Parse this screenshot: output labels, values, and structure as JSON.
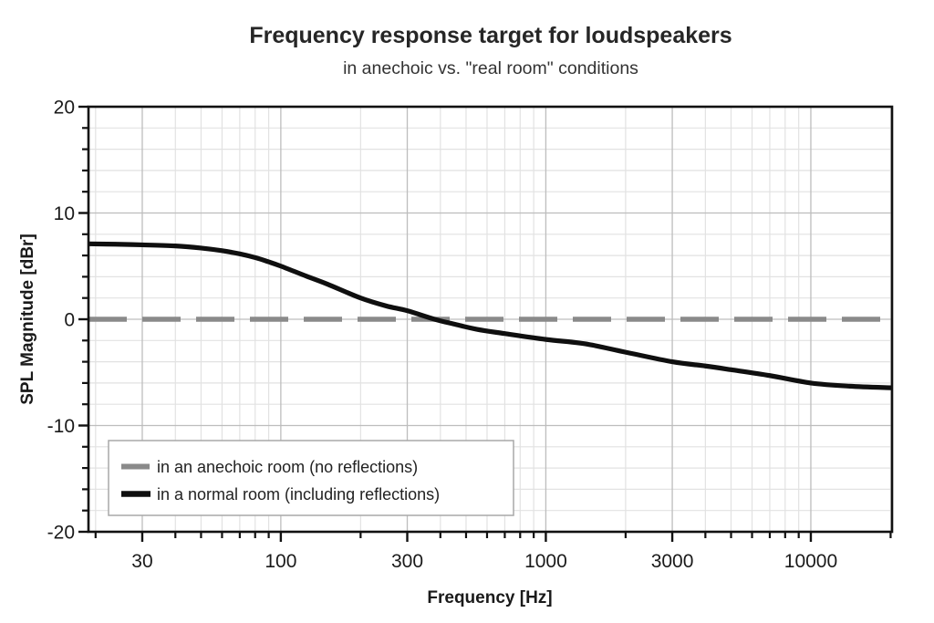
{
  "chart_data": {
    "type": "line",
    "title": "Frequency response target for loudspeakers",
    "subtitle": "in anechoic vs. \"real room\" conditions",
    "grid": true,
    "legend_position": "lower left",
    "x_axis": {
      "label": "Frequency [Hz]",
      "scale": "log",
      "range": [
        18.8,
        20250
      ],
      "major_ticks": [
        30,
        100,
        300,
        1000,
        3000,
        10000
      ],
      "major_tick_labels": [
        "30",
        "100",
        "300",
        "1000",
        "3000",
        "10000"
      ],
      "minor_ticks": [
        20,
        40,
        50,
        60,
        70,
        80,
        90,
        200,
        400,
        500,
        600,
        700,
        800,
        900,
        2000,
        4000,
        5000,
        6000,
        7000,
        8000,
        9000,
        20000
      ]
    },
    "y_axis": {
      "label": "SPL Magnitude [dBr]",
      "scale": "linear",
      "range": [
        -20,
        20
      ],
      "major_ticks": [
        -20,
        -10,
        0,
        10,
        20
      ],
      "major_tick_labels": [
        "-20",
        "-10",
        "0",
        "10",
        "20"
      ],
      "minor_ticks": [
        -18,
        -16,
        -14,
        -12,
        -8,
        -6,
        -4,
        -2,
        2,
        4,
        6,
        8,
        12,
        14,
        16,
        18
      ]
    },
    "series": [
      {
        "name": "anechoic",
        "label": "in an anechoic room (no reflections)",
        "color": "#8a8a8a",
        "width": 5.5,
        "dash": [
          42,
          17
        ],
        "points": [
          [
            18.8,
            0
          ],
          [
            20250,
            0
          ]
        ]
      },
      {
        "name": "normal-room",
        "label": "in a normal room (including reflections)",
        "color": "#0f0f0f",
        "width": 5.2,
        "dash": null,
        "points": [
          [
            18.8,
            7.1
          ],
          [
            25,
            7.05
          ],
          [
            30,
            7.0
          ],
          [
            40,
            6.9
          ],
          [
            50,
            6.7
          ],
          [
            60,
            6.45
          ],
          [
            70,
            6.15
          ],
          [
            80,
            5.8
          ],
          [
            90,
            5.4
          ],
          [
            100,
            5.0
          ],
          [
            125,
            4.05
          ],
          [
            150,
            3.3
          ],
          [
            200,
            2.0
          ],
          [
            250,
            1.25
          ],
          [
            300,
            0.8
          ],
          [
            380,
            0.0
          ],
          [
            450,
            -0.45
          ],
          [
            550,
            -0.95
          ],
          [
            700,
            -1.35
          ],
          [
            1000,
            -1.9
          ],
          [
            1400,
            -2.3
          ],
          [
            2000,
            -3.1
          ],
          [
            3000,
            -4.0
          ],
          [
            4000,
            -4.4
          ],
          [
            5000,
            -4.75
          ],
          [
            7000,
            -5.3
          ],
          [
            10000,
            -6.0
          ],
          [
            14000,
            -6.3
          ],
          [
            20250,
            -6.45
          ]
        ]
      }
    ],
    "colors": {
      "background": "#ffffff",
      "frame": "#111111",
      "grid_minor": "#e2e2e2",
      "grid_major": "#bdbdbd",
      "legend_border": "#a8a8a8",
      "text": "#1f1f1f"
    }
  }
}
